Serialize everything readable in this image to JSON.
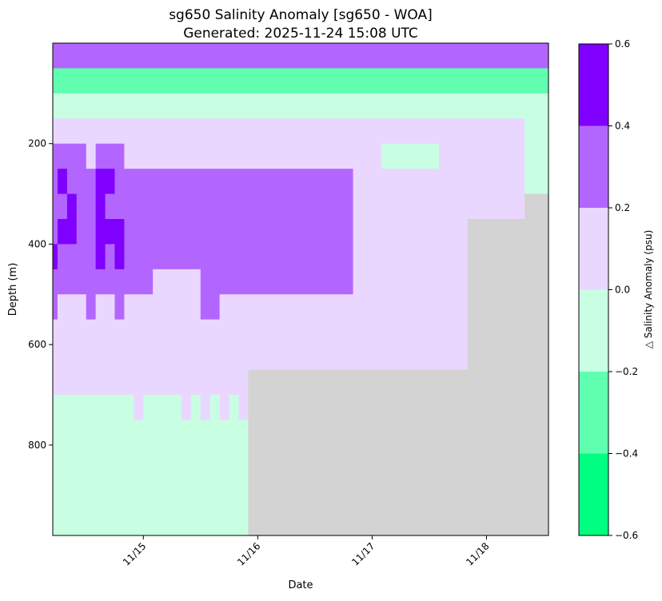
{
  "chart_data": {
    "type": "heatmap",
    "title": "sg650 Salinity Anomaly [sg650 - WOA]",
    "subtitle": "Generated: 2025-11-24 15:08 UTC",
    "xlabel": "Date",
    "ylabel": "Depth (m)",
    "xlim": [
      "2025-11-14 05:00",
      "2025-11-18 13:00"
    ],
    "ylim": [
      980,
      0
    ],
    "x_ticks": [
      "2025-11-15",
      "2025-11-16",
      "2025-11-17",
      "2025-11-18"
    ],
    "x_tick_labels": [
      "11/15",
      "11/16",
      "11/17",
      "11/18"
    ],
    "y_ticks": [
      200,
      400,
      600,
      800
    ],
    "y_tick_labels": [
      "200",
      "400",
      "600",
      "800"
    ],
    "no_data_color": "#d3d3d3",
    "colorbar": {
      "label": "△ Salinity Anomaly (psu)",
      "bounds": [
        -0.6,
        -0.4,
        -0.2,
        0.0,
        0.2,
        0.4,
        0.6
      ],
      "tick_labels": [
        "−0.6",
        "−0.4",
        "−0.2",
        "0.0",
        "0.2",
        "0.4",
        "0.6"
      ],
      "colors": [
        "#00ff80",
        "#60ffb0",
        "#c8ffe3",
        "#ead7ff",
        "#b366ff",
        "#8000ff"
      ]
    },
    "x": [
      "2025-11-14 05:00",
      "2025-11-14 07:00",
      "2025-11-14 09:00",
      "2025-11-14 11:00",
      "2025-11-14 13:00",
      "2025-11-14 15:00",
      "2025-11-14 17:00",
      "2025-11-14 19:00",
      "2025-11-14 21:00",
      "2025-11-14 23:00",
      "2025-11-15 01:00",
      "2025-11-15 03:00",
      "2025-11-15 05:00",
      "2025-11-15 07:00",
      "2025-11-15 09:00",
      "2025-11-15 11:00",
      "2025-11-15 13:00",
      "2025-11-15 15:00",
      "2025-11-15 17:00",
      "2025-11-15 19:00",
      "2025-11-15 21:00",
      "2025-11-15 23:00",
      "2025-11-16 01:00",
      "2025-11-16 03:00",
      "2025-11-16 05:00",
      "2025-11-16 07:00",
      "2025-11-16 09:00",
      "2025-11-16 11:00",
      "2025-11-16 13:00",
      "2025-11-16 15:00",
      "2025-11-16 17:00",
      "2025-11-16 19:00",
      "2025-11-16 21:00",
      "2025-11-16 23:00",
      "2025-11-17 01:00",
      "2025-11-17 03:00",
      "2025-11-17 05:00",
      "2025-11-17 07:00",
      "2025-11-17 09:00",
      "2025-11-17 11:00",
      "2025-11-17 13:00",
      "2025-11-17 15:00",
      "2025-11-17 17:00",
      "2025-11-17 19:00",
      "2025-11-17 21:00",
      "2025-11-17 23:00",
      "2025-11-18 01:00",
      "2025-11-18 03:00",
      "2025-11-18 05:00",
      "2025-11-18 07:00",
      "2025-11-18 09:00",
      "2025-11-18 11:00"
    ],
    "depth": [
      25,
      75,
      125,
      175,
      225,
      275,
      325,
      375,
      425,
      475,
      525,
      575,
      625,
      675,
      725,
      775,
      825,
      875,
      925,
      975
    ],
    "z": [
      [
        0.35,
        0.35,
        0.35,
        0.35,
        0.35,
        0.35,
        0.35,
        0.35,
        0.35,
        0.35,
        0.35,
        0.35,
        0.35,
        0.35,
        0.35,
        0.35,
        0.35,
        0.35,
        0.35,
        0.35,
        0.35,
        0.35,
        0.35,
        0.35,
        0.35,
        0.35,
        0.35,
        0.35,
        0.35,
        0.35,
        0.35,
        0.35,
        0.35,
        0.35,
        0.35,
        0.35,
        0.35,
        0.35,
        0.35,
        0.35,
        0.35,
        0.35,
        0.35,
        0.35,
        0.35,
        0.35,
        0.35,
        0.35,
        0.35,
        0.35,
        0.35,
        0.35
      ],
      [
        -0.3,
        -0.3,
        -0.3,
        -0.3,
        -0.3,
        -0.3,
        -0.3,
        -0.3,
        -0.3,
        -0.3,
        -0.3,
        -0.3,
        -0.3,
        -0.3,
        -0.3,
        -0.3,
        -0.3,
        -0.3,
        -0.3,
        -0.3,
        -0.3,
        -0.3,
        -0.3,
        -0.3,
        -0.3,
        -0.3,
        -0.3,
        -0.3,
        -0.3,
        -0.3,
        -0.3,
        -0.3,
        -0.3,
        -0.3,
        -0.3,
        -0.3,
        -0.3,
        -0.3,
        -0.3,
        -0.3,
        -0.3,
        -0.3,
        -0.3,
        -0.3,
        -0.3,
        -0.3,
        -0.3,
        -0.3,
        -0.3,
        -0.3,
        -0.3,
        -0.3
      ],
      [
        -0.1,
        -0.1,
        -0.1,
        -0.1,
        -0.1,
        -0.1,
        -0.1,
        -0.1,
        -0.1,
        -0.1,
        -0.1,
        -0.1,
        -0.1,
        -0.1,
        -0.1,
        -0.1,
        -0.1,
        -0.1,
        -0.1,
        -0.1,
        -0.1,
        -0.1,
        -0.1,
        -0.1,
        -0.1,
        -0.1,
        -0.1,
        -0.1,
        -0.1,
        -0.1,
        -0.1,
        -0.1,
        -0.1,
        -0.1,
        -0.1,
        -0.1,
        -0.1,
        -0.1,
        -0.1,
        -0.1,
        -0.1,
        -0.1,
        -0.1,
        -0.1,
        -0.1,
        -0.1,
        -0.1,
        -0.1,
        -0.1,
        -0.1,
        -0.1,
        -0.1
      ],
      [
        0.1,
        0.1,
        0.1,
        0.1,
        0.1,
        0.1,
        0.1,
        0.1,
        0.1,
        0.1,
        0.1,
        0.1,
        0.1,
        0.1,
        0.1,
        0.1,
        0.1,
        0.1,
        0.1,
        0.1,
        0.1,
        0.1,
        0.1,
        0.1,
        0.1,
        0.1,
        0.1,
        0.1,
        0.1,
        0.1,
        0.1,
        0.1,
        0.1,
        0.1,
        0.1,
        0.1,
        0.1,
        0.1,
        0.1,
        0.1,
        0.1,
        0.1,
        0.1,
        0.1,
        0.1,
        0.1,
        0.1,
        0.1,
        0.1,
        0.1,
        -0.1,
        -0.1
      ],
      [
        0.3,
        0.3,
        0.3,
        0.3,
        0.1,
        0.3,
        0.3,
        0.3,
        0.1,
        0.1,
        0.1,
        0.1,
        0.1,
        0.1,
        0.1,
        0.1,
        0.1,
        0.1,
        0.1,
        0.1,
        0.1,
        0.1,
        0.1,
        0.1,
        0.1,
        0.1,
        0.1,
        0.1,
        0.1,
        0.1,
        0.1,
        0.1,
        0.1,
        0.1,
        0.1,
        -0.1,
        -0.1,
        -0.1,
        -0.1,
        -0.1,
        -0.1,
        0.1,
        0.1,
        0.1,
        0.1,
        0.1,
        0.1,
        0.1,
        0.1,
        0.1,
        -0.1,
        -0.1
      ],
      [
        0.3,
        0.5,
        0.3,
        0.3,
        0.3,
        0.5,
        0.5,
        0.3,
        0.3,
        0.3,
        0.3,
        0.3,
        0.3,
        0.3,
        0.3,
        0.3,
        0.3,
        0.3,
        0.3,
        0.3,
        0.3,
        0.3,
        0.3,
        0.3,
        0.3,
        0.3,
        0.3,
        0.3,
        0.3,
        0.3,
        0.3,
        0.3,
        0.1,
        0.1,
        0.1,
        0.1,
        0.1,
        0.1,
        0.1,
        0.1,
        0.1,
        0.1,
        0.1,
        0.1,
        0.1,
        0.1,
        0.1,
        0.1,
        0.1,
        0.1,
        -0.1,
        -0.1
      ],
      [
        0.3,
        0.3,
        0.5,
        0.3,
        0.3,
        0.5,
        0.3,
        0.3,
        0.3,
        0.3,
        0.3,
        0.3,
        0.3,
        0.3,
        0.3,
        0.3,
        0.3,
        0.3,
        0.3,
        0.3,
        0.3,
        0.3,
        0.3,
        0.3,
        0.3,
        0.3,
        0.3,
        0.3,
        0.3,
        0.3,
        0.3,
        0.3,
        0.1,
        0.1,
        0.1,
        0.1,
        0.1,
        0.1,
        0.1,
        0.1,
        0.1,
        0.1,
        0.1,
        0.1,
        0.1,
        0.1,
        0.1,
        0.1,
        0.1,
        0.1,
        null,
        null
      ],
      [
        0.3,
        0.5,
        0.5,
        0.3,
        0.3,
        0.5,
        0.5,
        0.5,
        0.3,
        0.3,
        0.3,
        0.3,
        0.3,
        0.3,
        0.3,
        0.3,
        0.3,
        0.3,
        0.3,
        0.3,
        0.3,
        0.3,
        0.3,
        0.3,
        0.3,
        0.3,
        0.3,
        0.3,
        0.3,
        0.3,
        0.3,
        0.3,
        0.1,
        0.1,
        0.1,
        0.1,
        0.1,
        0.1,
        0.1,
        0.1,
        0.1,
        0.1,
        0.1,
        0.1,
        null,
        null,
        null,
        null,
        null,
        null,
        null,
        null
      ],
      [
        0.5,
        0.3,
        0.3,
        0.3,
        0.3,
        0.5,
        0.3,
        0.5,
        0.3,
        0.3,
        0.3,
        0.3,
        0.3,
        0.3,
        0.3,
        0.3,
        0.3,
        0.3,
        0.3,
        0.3,
        0.3,
        0.3,
        0.3,
        0.3,
        0.3,
        0.3,
        0.3,
        0.3,
        0.3,
        0.3,
        0.3,
        0.3,
        0.1,
        0.1,
        0.1,
        0.1,
        0.1,
        0.1,
        0.1,
        0.1,
        0.1,
        0.1,
        0.1,
        0.1,
        null,
        null,
        null,
        null,
        null,
        null,
        null,
        null
      ],
      [
        0.3,
        0.3,
        0.3,
        0.3,
        0.3,
        0.3,
        0.3,
        0.3,
        0.3,
        0.3,
        0.3,
        0.1,
        0.1,
        0.1,
        0.1,
        0.1,
        0.3,
        0.3,
        0.3,
        0.3,
        0.3,
        0.3,
        0.3,
        0.3,
        0.3,
        0.3,
        0.3,
        0.3,
        0.3,
        0.3,
        0.3,
        0.3,
        0.1,
        0.1,
        0.1,
        0.1,
        0.1,
        0.1,
        0.1,
        0.1,
        0.1,
        0.1,
        0.1,
        0.1,
        null,
        null,
        null,
        null,
        null,
        null,
        null,
        null
      ],
      [
        0.3,
        0.1,
        0.1,
        0.1,
        0.3,
        0.1,
        0.1,
        0.3,
        0.1,
        0.1,
        0.1,
        0.1,
        0.1,
        0.1,
        0.1,
        0.1,
        0.3,
        0.3,
        0.1,
        0.1,
        0.1,
        0.1,
        0.1,
        0.1,
        0.1,
        0.1,
        0.1,
        0.1,
        0.1,
        0.1,
        0.1,
        0.1,
        0.1,
        0.1,
        0.1,
        0.1,
        0.1,
        0.1,
        0.1,
        0.1,
        0.1,
        0.1,
        0.1,
        0.1,
        null,
        null,
        null,
        null,
        null,
        null,
        null,
        null
      ],
      [
        0.1,
        0.1,
        0.1,
        0.1,
        0.1,
        0.1,
        0.1,
        0.1,
        0.1,
        0.1,
        0.1,
        0.1,
        0.1,
        0.1,
        0.1,
        0.1,
        0.1,
        0.1,
        0.1,
        0.1,
        0.1,
        0.1,
        0.1,
        0.1,
        0.1,
        0.1,
        0.1,
        0.1,
        0.1,
        0.1,
        0.1,
        0.1,
        0.1,
        0.1,
        0.1,
        0.1,
        0.1,
        0.1,
        0.1,
        0.1,
        0.1,
        0.1,
        0.1,
        0.1,
        null,
        null,
        null,
        null,
        null,
        null,
        null,
        null
      ],
      [
        0.1,
        0.1,
        0.1,
        0.1,
        0.1,
        0.1,
        0.1,
        0.1,
        0.1,
        0.1,
        0.1,
        0.1,
        0.1,
        0.1,
        0.1,
        0.1,
        0.1,
        0.1,
        0.1,
        0.1,
        0.1,
        0.1,
        0.1,
        0.1,
        0.1,
        0.1,
        0.1,
        0.1,
        0.1,
        0.1,
        0.1,
        0.1,
        0.1,
        0.1,
        0.1,
        0.1,
        0.1,
        0.1,
        0.1,
        0.1,
        0.1,
        0.1,
        0.1,
        0.1,
        null,
        null,
        null,
        null,
        null,
        null,
        null,
        null
      ],
      [
        0.1,
        0.1,
        0.1,
        0.1,
        0.1,
        0.1,
        0.1,
        0.1,
        0.1,
        0.1,
        0.1,
        0.1,
        0.1,
        0.1,
        0.1,
        0.1,
        0.1,
        0.1,
        0.1,
        0.1,
        0.1,
        null,
        null,
        null,
        null,
        null,
        null,
        null,
        null,
        null,
        null,
        null,
        null,
        null,
        null,
        null,
        null,
        null,
        null,
        null,
        null,
        null,
        null,
        null,
        null,
        null,
        null,
        null,
        null,
        null,
        null,
        null
      ],
      [
        -0.1,
        -0.1,
        -0.1,
        -0.1,
        -0.1,
        -0.1,
        -0.1,
        -0.1,
        -0.1,
        0.1,
        -0.1,
        -0.1,
        -0.1,
        -0.1,
        0.1,
        -0.1,
        0.1,
        -0.1,
        0.1,
        -0.1,
        0.1,
        null,
        null,
        null,
        null,
        null,
        null,
        null,
        null,
        null,
        null,
        null,
        null,
        null,
        null,
        null,
        null,
        null,
        null,
        null,
        null,
        null,
        null,
        null,
        null,
        null,
        null,
        null,
        null,
        null,
        null,
        null
      ],
      [
        -0.1,
        -0.1,
        -0.1,
        -0.1,
        -0.1,
        -0.1,
        -0.1,
        -0.1,
        -0.1,
        -0.1,
        -0.1,
        -0.1,
        -0.1,
        -0.1,
        -0.1,
        -0.1,
        -0.1,
        -0.1,
        -0.1,
        -0.1,
        -0.1,
        null,
        null,
        null,
        null,
        null,
        null,
        null,
        null,
        null,
        null,
        null,
        null,
        null,
        null,
        null,
        null,
        null,
        null,
        null,
        null,
        null,
        null,
        null,
        null,
        null,
        null,
        null,
        null,
        null,
        null,
        null
      ],
      [
        -0.1,
        -0.1,
        -0.1,
        -0.1,
        -0.1,
        -0.1,
        -0.1,
        -0.1,
        -0.1,
        -0.1,
        -0.1,
        -0.1,
        -0.1,
        -0.1,
        -0.1,
        -0.1,
        -0.1,
        -0.1,
        -0.1,
        -0.1,
        -0.1,
        null,
        null,
        null,
        null,
        null,
        null,
        null,
        null,
        null,
        null,
        null,
        null,
        null,
        null,
        null,
        null,
        null,
        null,
        null,
        null,
        null,
        null,
        null,
        null,
        null,
        null,
        null,
        null,
        null,
        null,
        null
      ],
      [
        -0.1,
        -0.1,
        -0.1,
        -0.1,
        -0.1,
        -0.1,
        -0.1,
        -0.1,
        -0.1,
        -0.1,
        -0.1,
        -0.1,
        -0.1,
        -0.1,
        -0.1,
        -0.1,
        -0.1,
        -0.1,
        -0.1,
        -0.1,
        -0.1,
        null,
        null,
        null,
        null,
        null,
        null,
        null,
        null,
        null,
        null,
        null,
        null,
        null,
        null,
        null,
        null,
        null,
        null,
        null,
        null,
        null,
        null,
        null,
        null,
        null,
        null,
        null,
        null,
        null,
        null,
        null
      ],
      [
        -0.1,
        -0.1,
        -0.1,
        -0.1,
        -0.1,
        -0.1,
        -0.1,
        -0.1,
        -0.1,
        -0.1,
        -0.1,
        -0.1,
        -0.1,
        -0.1,
        -0.1,
        -0.1,
        -0.1,
        -0.1,
        -0.1,
        -0.1,
        -0.1,
        null,
        null,
        null,
        null,
        null,
        null,
        null,
        null,
        null,
        null,
        null,
        null,
        null,
        null,
        null,
        null,
        null,
        null,
        null,
        null,
        null,
        null,
        null,
        null,
        null,
        null,
        null,
        null,
        null,
        null,
        null
      ],
      [
        -0.1,
        -0.1,
        -0.1,
        -0.1,
        -0.1,
        -0.1,
        -0.1,
        -0.1,
        -0.1,
        -0.1,
        -0.1,
        -0.1,
        -0.1,
        -0.1,
        -0.1,
        -0.1,
        -0.1,
        -0.1,
        -0.1,
        -0.1,
        -0.1,
        null,
        null,
        null,
        null,
        null,
        null,
        null,
        null,
        null,
        null,
        null,
        null,
        null,
        null,
        null,
        null,
        null,
        null,
        null,
        null,
        null,
        null,
        null,
        null,
        null,
        null,
        null,
        null,
        null,
        null,
        null
      ]
    ]
  }
}
